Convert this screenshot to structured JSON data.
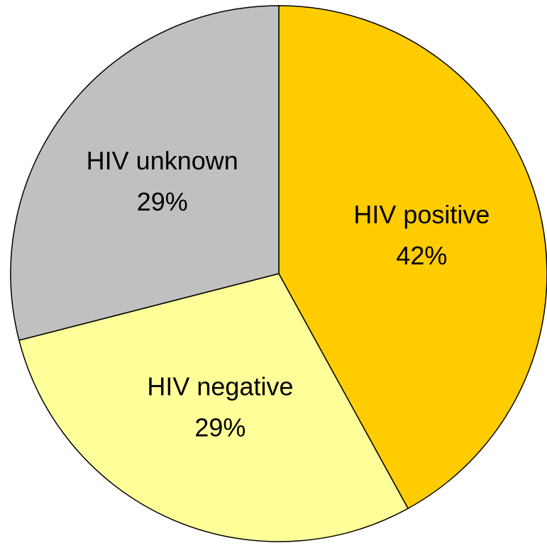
{
  "chart_data": {
    "type": "pie",
    "categories": [
      "HIV positive",
      "HIV negative",
      "HIV unknown"
    ],
    "values": [
      42,
      29,
      29
    ],
    "value_labels": [
      "42%",
      "29%",
      "29%"
    ],
    "colors": [
      "#FFCC00",
      "#FFFF99",
      "#C0C0C0"
    ]
  }
}
